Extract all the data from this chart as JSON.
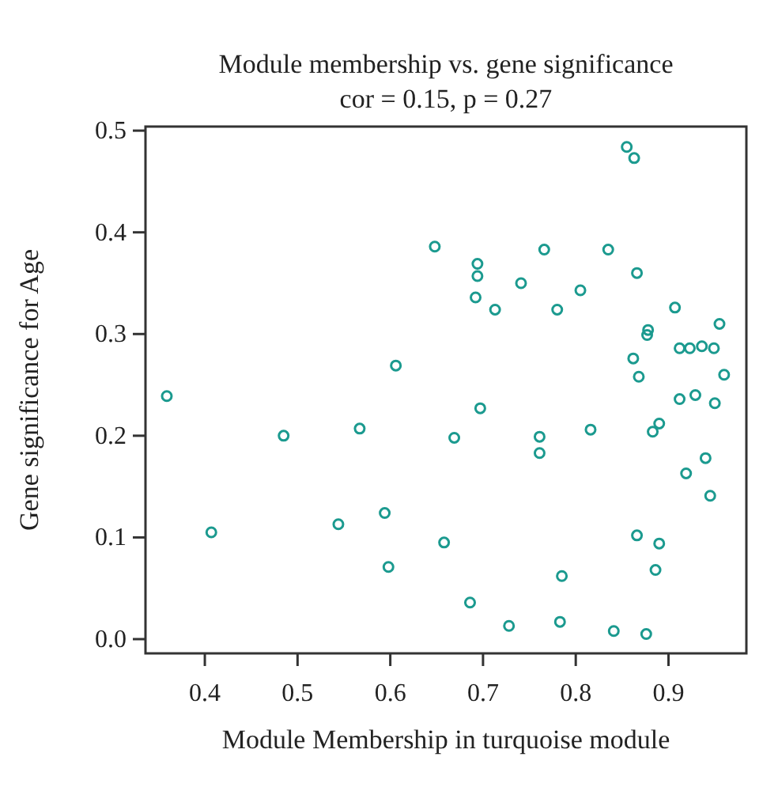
{
  "chart_data": {
    "type": "scatter",
    "title": "Module membership vs. gene significance",
    "subtitle": "cor = 0.15, p = 0.27",
    "xlabel": "Module Membership in turquoise module",
    "ylabel": "Gene significance for Age",
    "xlim": [
      0.336,
      0.984
    ],
    "ylim": [
      -0.014,
      0.504
    ],
    "xticks": [
      0.4,
      0.5,
      0.6,
      0.7,
      0.8,
      0.9
    ],
    "yticks": [
      {
        "value": 0,
        "label": "0.0"
      },
      0.1,
      0.2,
      0.3,
      0.4,
      0.5
    ],
    "grid": false,
    "marker": "circle",
    "series": [
      {
        "color": "#1b9a8f",
        "x": [
          0.648,
          0.606,
          0.359,
          0.485,
          0.567,
          0.855,
          0.863,
          0.766,
          0.835,
          0.694,
          0.694,
          0.866,
          0.741,
          0.805,
          0.692,
          0.713,
          0.78,
          0.907,
          0.955,
          0.878,
          0.877,
          0.912,
          0.923,
          0.936,
          0.949,
          0.862,
          0.96,
          0.868,
          0.697,
          0.912,
          0.929,
          0.95,
          0.89,
          0.883,
          0.669,
          0.761,
          0.816,
          0.761,
          0.919,
          0.94,
          0.945,
          0.658,
          0.866,
          0.89,
          0.785,
          0.886,
          0.686,
          0.728,
          0.783,
          0.841,
          0.876,
          0.407,
          0.544,
          0.594,
          0.598
        ],
        "values": [
          0.386,
          0.269,
          0.239,
          0.2,
          0.207,
          0.484,
          0.473,
          0.383,
          0.383,
          0.369,
          0.357,
          0.36,
          0.35,
          0.343,
          0.336,
          0.324,
          0.324,
          0.326,
          0.31,
          0.304,
          0.299,
          0.286,
          0.286,
          0.288,
          0.286,
          0.276,
          0.26,
          0.258,
          0.227,
          0.236,
          0.24,
          0.232,
          0.212,
          0.204,
          0.198,
          0.199,
          0.206,
          0.183,
          0.163,
          0.178,
          0.141,
          0.095,
          0.102,
          0.094,
          0.062,
          0.068,
          0.036,
          0.013,
          0.017,
          0.008,
          0.005,
          0.105,
          0.113,
          0.124,
          0.071
        ]
      }
    ]
  }
}
